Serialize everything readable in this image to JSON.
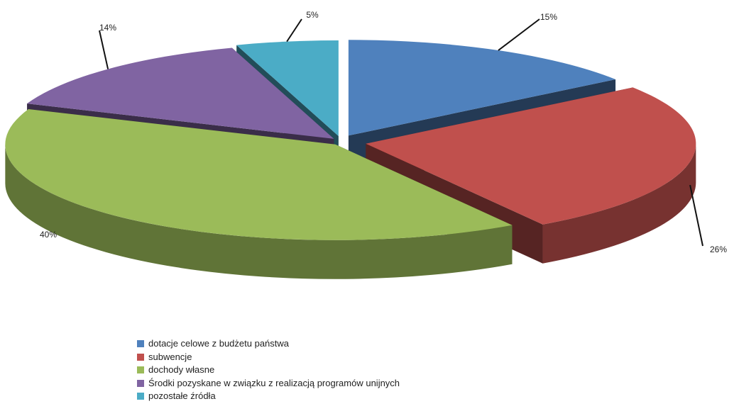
{
  "chart_data": {
    "type": "pie",
    "style": "3d-exploded",
    "title": "",
    "slices": [
      {
        "label": "dotacje celowe z budżetu państwa",
        "value": 15,
        "value_label": "15%",
        "color": "#4F81BD"
      },
      {
        "label": "subwencje",
        "value": 26,
        "value_label": "26%",
        "color": "#C0504D"
      },
      {
        "label": "dochody własne",
        "value": 40,
        "value_label": "40%",
        "color": "#9BBB59"
      },
      {
        "label": "Środki pozyskane w związku z realizacją programów unijnych",
        "value": 14,
        "value_label": "14%",
        "color": "#8064A2"
      },
      {
        "label": "pozostałe źródła",
        "value": 5,
        "value_label": "5%",
        "color": "#4BACC6"
      }
    ],
    "legend_position": "bottom"
  }
}
